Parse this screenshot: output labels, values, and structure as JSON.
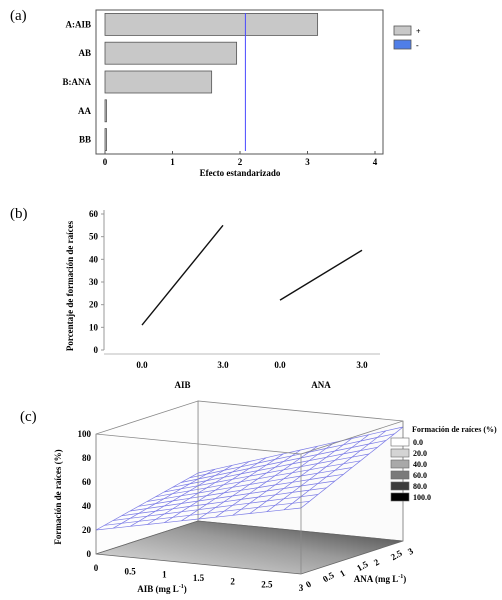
{
  "panel_labels": [
    "(a)",
    "(b)",
    "(c)"
  ],
  "colors": {
    "bar_fill": "#c8c8c8",
    "bar_stroke": "#555555",
    "ref_line": "#4a4aff",
    "legend_minus": "#4f7ee8",
    "mesh": "#7a7ae6",
    "line_black": "#111111"
  },
  "chart_data": [
    {
      "type": "bar",
      "orientation": "horizontal",
      "categories": [
        "A:AIB",
        "AB",
        "B:ANA",
        "AA",
        "BB"
      ],
      "values": [
        3.15,
        1.95,
        1.58,
        0.02,
        0.02
      ],
      "xlabel": "Efecto estandarizado",
      "xlim": [
        0,
        4
      ],
      "xticks": [
        "0",
        "1",
        "2",
        "3",
        "4"
      ],
      "reference_line": 2.08,
      "legend": [
        "+",
        "-"
      ]
    },
    {
      "type": "line",
      "ylabel": "Porcentaje de formación de raíces",
      "ylim": [
        0,
        60
      ],
      "yticks": [
        "0",
        "10",
        "20",
        "30",
        "40",
        "50",
        "60"
      ],
      "groups": [
        {
          "factor": "AIB",
          "x": [
            "0.0",
            "3.0"
          ],
          "values": [
            11,
            55
          ]
        },
        {
          "factor": "ANA",
          "x": [
            "0.0",
            "3.0"
          ],
          "values": [
            22,
            44
          ]
        }
      ]
    },
    {
      "type": "surface",
      "zlabel": "Formación de raíces (%)",
      "xlabel": "AIB (mg L",
      "xlabel_sup": "-1",
      "xlabel_end": ")",
      "ylabel": "ANA (mg L",
      "ylabel_sup": "-1",
      "ylabel_end": ")",
      "zticks": [
        "0",
        "20",
        "40",
        "60",
        "80",
        "100"
      ],
      "xticks": [
        "0",
        "0.5",
        "1",
        "1.5",
        "2",
        "2.5",
        "3"
      ],
      "yticks": [
        "0",
        "0.5",
        "1",
        "1.5",
        "2",
        "2.5",
        "3"
      ],
      "legend_title": "Formación de raíces (%)",
      "legend_items": [
        {
          "label": "0.0",
          "color": "#ffffff"
        },
        {
          "label": "20.0",
          "color": "#d4d4d4"
        },
        {
          "label": "40.0",
          "color": "#a9a9a9"
        },
        {
          "label": "60.0",
          "color": "#7a7a7a"
        },
        {
          "label": "80.0",
          "color": "#3c3c3c"
        },
        {
          "label": "100.0",
          "color": "#000000"
        }
      ],
      "corners": {
        "aib0_ana0": 20,
        "aib3_ana0": 55,
        "aib0_ana3": 40,
        "aib3_ana3": 95
      }
    }
  ]
}
